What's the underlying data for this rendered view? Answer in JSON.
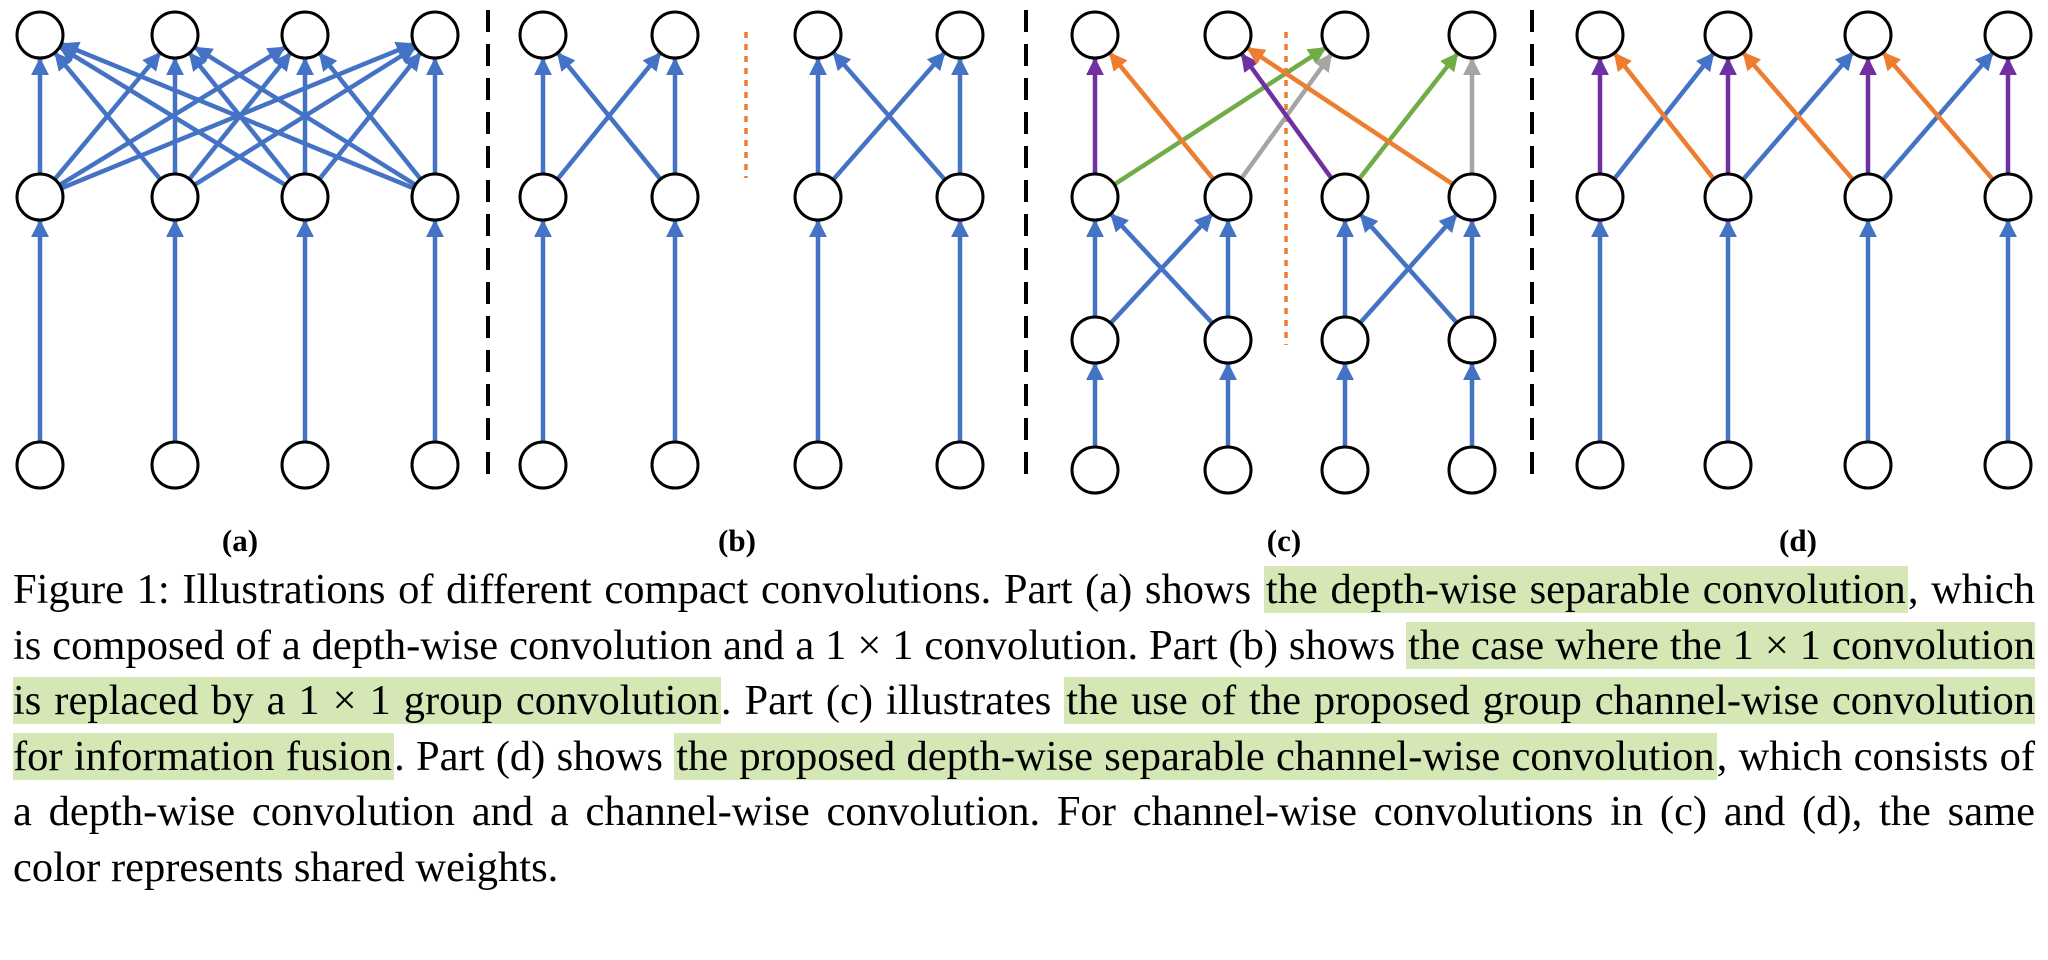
{
  "figure": {
    "panel_labels": [
      "(a)",
      "(b)",
      "(c)",
      "(d)"
    ],
    "colors": {
      "blue": "#4472c4",
      "orange": "#ed7d31",
      "green": "#70ad47",
      "gray": "#a5a5a5",
      "purple": "#7030a0",
      "divider": "#000000",
      "group_separator": "#ed7d31"
    }
  },
  "caption": {
    "figure_number": "Figure 1:",
    "t1": " Illustrations of different compact convolutions. Part (a) shows ",
    "h1": "the depth-wise separable convolution",
    "t2": ", which is composed of a depth-wise convolution and a 1 × 1 convolution.  Part (b) shows ",
    "h2": "the case where the 1 × 1 convolution is replaced by a 1 × 1 group convolution",
    "t3": ".  Part (c) illustrates ",
    "h3": "the use of the proposed group channel-wise convolution for information fusion",
    "t4": ". Part (d) shows ",
    "h4": "the proposed depth-wise separable channel-wise convolution",
    "t5": ", which consists of a depth-wise convolution and a channel-wise convolution. For channel-wise convolutions in (c) and (d), the same color represents shared weights."
  }
}
